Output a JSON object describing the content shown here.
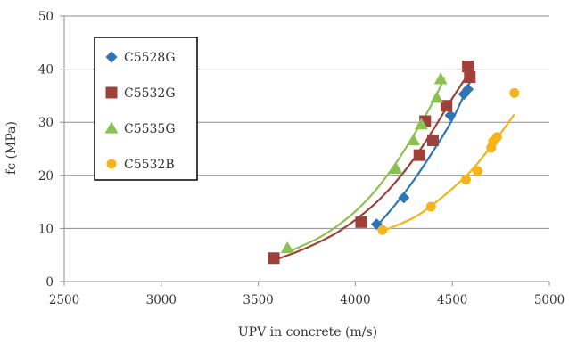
{
  "chart_data": {
    "type": "scatter",
    "title": "",
    "xlabel": "UPV in concrete (m/s)",
    "ylabel": "fc (MPa)",
    "xlim": [
      2500,
      5000
    ],
    "ylim": [
      0,
      50
    ],
    "xticks": [
      2500,
      3000,
      3500,
      4000,
      4500,
      5000
    ],
    "yticks": [
      0,
      10,
      20,
      30,
      40,
      50
    ],
    "grid": "horizontal",
    "legend_position": "top-left",
    "trendline": "exponential",
    "series": [
      {
        "name": "C5528G",
        "marker": "diamond",
        "color": "#2e75b6",
        "points": [
          [
            4110,
            10.8
          ],
          [
            4250,
            15.8
          ],
          [
            4490,
            31.3
          ],
          [
            4560,
            35.3
          ],
          [
            4580,
            36.2
          ]
        ],
        "trend": [
          [
            4100,
            10.0
          ],
          [
            4200,
            14.2
          ],
          [
            4300,
            19.0
          ],
          [
            4400,
            24.5
          ],
          [
            4500,
            30.5
          ],
          [
            4590,
            37.5
          ]
        ]
      },
      {
        "name": "C5532G",
        "marker": "square",
        "color": "#a0403a",
        "points": [
          [
            3580,
            4.4
          ],
          [
            4030,
            11.2
          ],
          [
            4330,
            23.8
          ],
          [
            4360,
            30.2
          ],
          [
            4400,
            26.6
          ],
          [
            4470,
            33.1
          ],
          [
            4580,
            40.5
          ],
          [
            4590,
            38.5
          ]
        ],
        "trend": [
          [
            3580,
            4.0
          ],
          [
            3700,
            5.6
          ],
          [
            3800,
            7.2
          ],
          [
            3900,
            9.1
          ],
          [
            4000,
            11.6
          ],
          [
            4100,
            14.6
          ],
          [
            4200,
            18.4
          ],
          [
            4300,
            23.0
          ],
          [
            4400,
            28.5
          ],
          [
            4500,
            34.5
          ],
          [
            4590,
            39.5
          ]
        ]
      },
      {
        "name": "C5535G",
        "marker": "triangle",
        "color": "#8cc152",
        "points": [
          [
            3650,
            6.3
          ],
          [
            4210,
            21.2
          ],
          [
            4300,
            26.6
          ],
          [
            4340,
            29.6
          ],
          [
            4420,
            34.6
          ],
          [
            4440,
            38.1
          ]
        ],
        "trend": [
          [
            3650,
            5.5
          ],
          [
            3800,
            8.0
          ],
          [
            3900,
            10.3
          ],
          [
            4000,
            13.2
          ],
          [
            4100,
            17.0
          ],
          [
            4200,
            21.8
          ],
          [
            4300,
            27.5
          ],
          [
            4400,
            33.8
          ],
          [
            4460,
            38.5
          ]
        ]
      },
      {
        "name": "C5532B",
        "marker": "circle",
        "color": "#f4b41a",
        "points": [
          [
            4140,
            9.7
          ],
          [
            4390,
            14.1
          ],
          [
            4570,
            19.2
          ],
          [
            4630,
            20.8
          ],
          [
            4700,
            25.2
          ],
          [
            4710,
            26.4
          ],
          [
            4730,
            27.2
          ],
          [
            4820,
            35.5
          ]
        ],
        "trend": [
          [
            4140,
            9.5
          ],
          [
            4300,
            12.0
          ],
          [
            4400,
            14.5
          ],
          [
            4500,
            17.5
          ],
          [
            4600,
            21.0
          ],
          [
            4700,
            25.5
          ],
          [
            4820,
            31.5
          ]
        ]
      }
    ]
  }
}
